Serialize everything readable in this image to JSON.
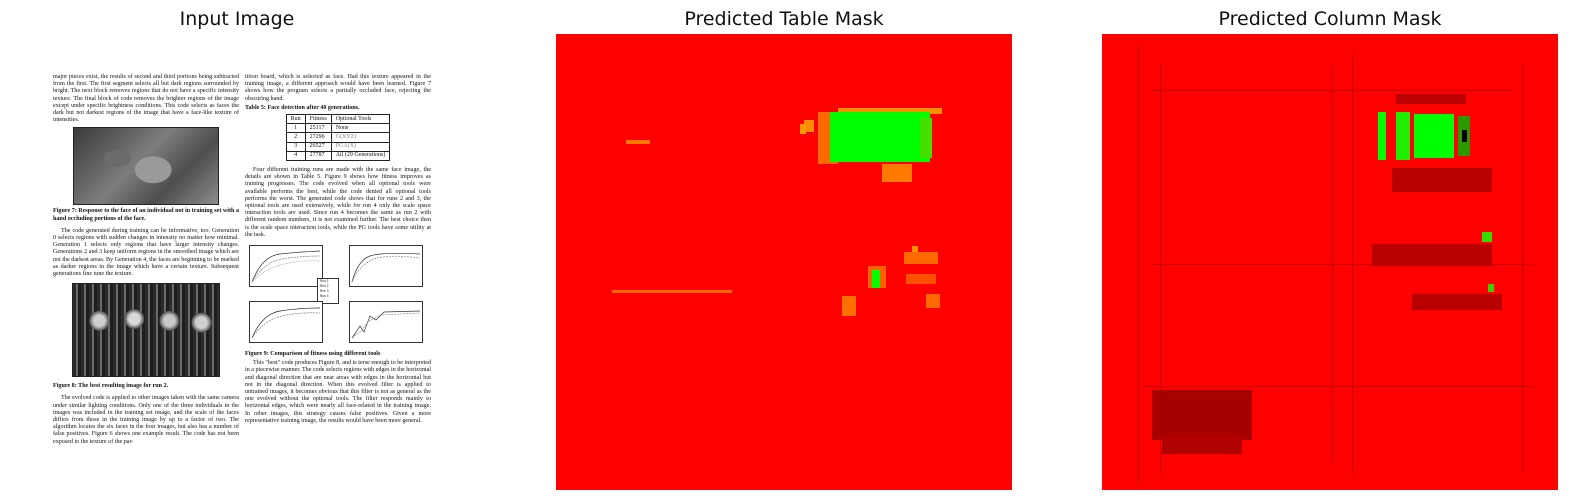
{
  "panels": {
    "input_title": "Input Image",
    "table_title": "Predicted Table Mask",
    "column_title": "Predicted Column Mask"
  },
  "colors": {
    "mask_background": "#ff0000",
    "mask_detection": "#00ff00",
    "mask_partial": "#ff7f00",
    "column_dark": "#b00000"
  },
  "page": {
    "left_col": {
      "para1": "major pieces exist, the results of second and third portions being subtracted from the first. The first segment selects all but dark regions surrounded by bright. The next block removes regions that do not have a specific intensity texture. The final block of code removes the brighter regions of the image except under specific brightness conditions. This code selects as faces the dark but not darkest regions of the image that have a face-like texture of intensities.",
      "fig7_caption": "Figure 7: Response to the face of an individual not in training set with a hand occluding portions of the face.",
      "para2": "The code generated during training can be informative, too. Generation 0 selects regions with sudden changes in intensity no matter how minimal. Generation 1 selects only regions that have larger intensity changes. Generations 2 and 3 keep uniform regions in the smoothed image which are not the darkest areas. By Generation 4, the faces are beginning to be marked as darker regions in the image which have a certain texture. Subsequent generations fine tune the texture.",
      "fig8_caption": "Figure 8: The best resulting image for run 2.",
      "para3": "The evolved code is applied to other images taken with the same camera under similar lighting conditions. Only one of the three individuals in the images was included in the training set image, and the scale of the faces differs from those in the training image by up to a factor of two. The algorithm locates the six faces in the four images, but also has a number of false positives. Figure 6 shows one example result. The code has not been exposed to the texture of the par-"
    },
    "right_col": {
      "para1": "tition board, which is selected as face. Had this texture appeared in the training image, a different approach would have been learned. Figure 7 shows how the program selects a partially occluded face, rejecting the obscuring hand.",
      "table_caption": "Table 5: Face detection after 40 generations.",
      "table_headers": [
        "Run",
        "Fitness",
        "Optional Tools"
      ],
      "table_rows": [
        [
          "1",
          "25117",
          "None"
        ],
        [
          "2",
          "27296",
          "G(XYZ)"
        ],
        [
          "3",
          "26527",
          "PGA(X)"
        ],
        [
          "4",
          "27787",
          "All (29 Generations)"
        ]
      ],
      "para2": "Four different training runs are made with the same face image, the details are shown in Table 5. Figure 9 shows how fitness improves as training progresses. The code evolved when all optional tools were available performs the best, while the code denied all optional tools performs the worst. The generated code shows that for runs 2 and 3, the optional tools are used extensively, while for run 4 only the scale space interaction tools are used. Since run 4 becomes the same as run 2 with different random numbers, it is not examined further. The best choice then is the scale space interaction tools, while the PG tools have some utility at the task.",
      "legend": [
        "Run 1",
        "Run 2",
        "Run 3",
        "Run 4"
      ],
      "fig9_caption": "Figure 9: Comparison of fitness using different tools",
      "para3": "This \"best\" code produces Figure 8, and is terse enough to be interpreted in a piecewise manner. The code selects regions with edges in the horizontal and diagonal direction that are near areas with edges in the horizontal but not in the diagonal direction. When this evolved filter is applied to untrained images, it becomes obvious that this filter is not as general as the one evolved without the optional tools. The filter responds mainly to horizontal edges, which were nearly all face-related in the training image. In other images, this strategy causes false positives. Given a more representative training image, the results would have been more general."
    }
  }
}
